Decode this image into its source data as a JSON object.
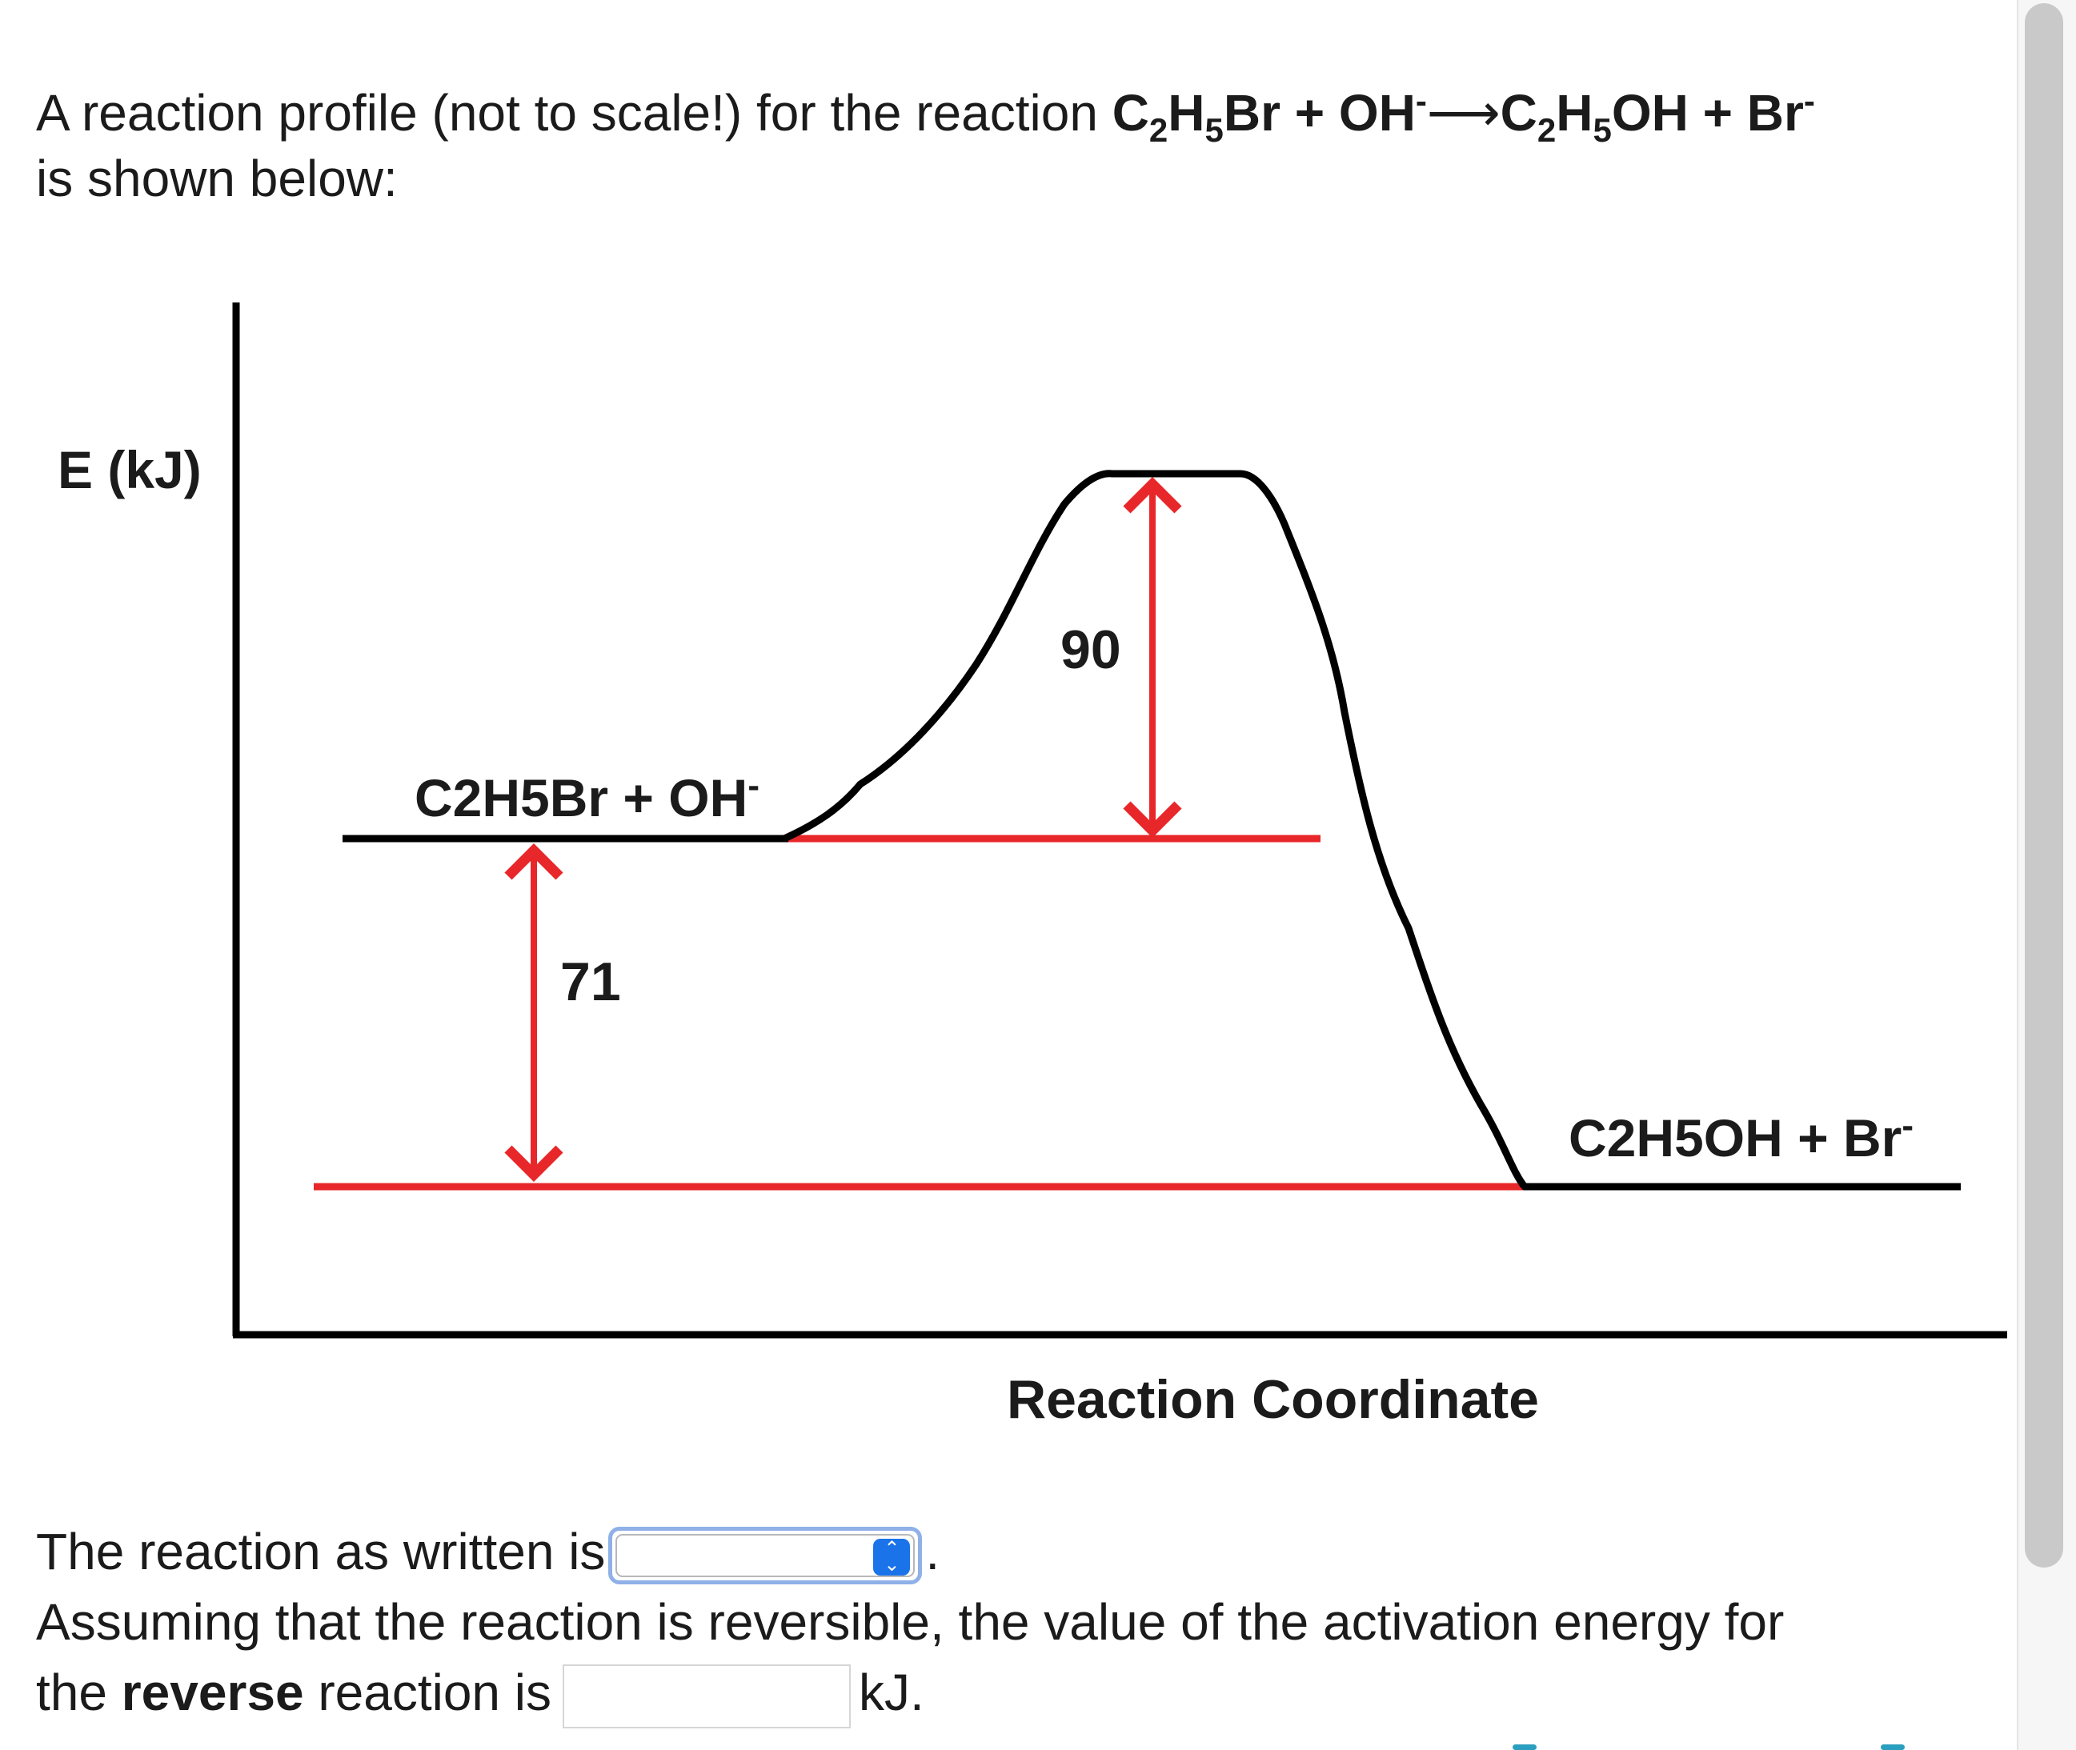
{
  "intro": {
    "line1_prefix": "A reaction profile (not to scale!) for the reaction ",
    "reactant1_c": "C",
    "reactant1_c_sub": "2",
    "reactant1_h": "H",
    "reactant1_h_sub": "5",
    "reactant1_rest": "Br + OH",
    "reactant2_charge": "-",
    "arrow": "⟶",
    "product1_c": "C",
    "product1_c_sub": "2",
    "product1_h": "H",
    "product1_h_sub": "5",
    "product1_rest": "OH + Br",
    "product2_charge": "-",
    "line2": "is shown below:"
  },
  "figure": {
    "ylabel": "E (kJ)",
    "xlabel": "Reaction Coordinate",
    "reactants_label": "C2H5Br + OH",
    "reactants_label_charge": "-",
    "products_label": "C2H5OH + Br",
    "products_label_charge": "-",
    "activation_label": "90",
    "delta_label": "71",
    "curve_color": "#000000",
    "arrow_color": "#e8272a"
  },
  "questions": {
    "q1_prefix": "The reaction as written is",
    "q1_select_value": "",
    "q1_suffix": ".",
    "q2_line1": "Assuming that the reaction is reversible, the value of the activation energy for",
    "q2_prefix": "the ",
    "q2_bold": "reverse",
    "q2_mid": " reaction is",
    "q2_input_value": "",
    "q2_unit": "kJ."
  }
}
